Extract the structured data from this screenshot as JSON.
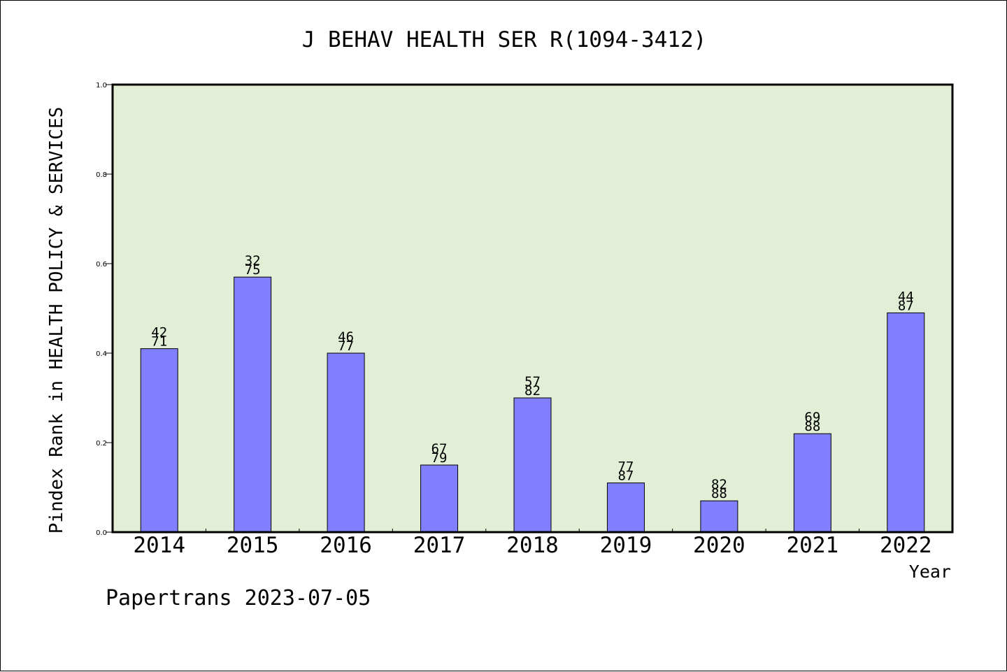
{
  "chart_data": {
    "type": "bar",
    "title": "J BEHAV HEALTH SER R(1094-3412)",
    "xlabel": "Year",
    "ylabel": "Pindex Rank in HEALTH POLICY & SERVICES",
    "ylim": [
      0,
      1.0
    ],
    "yticks": [
      "0.0",
      "0.2",
      "0.4",
      "0.6",
      "0.8",
      "1.0"
    ],
    "grid": false,
    "categories": [
      "2014",
      "2015",
      "2016",
      "2017",
      "2018",
      "2019",
      "2020",
      "2021",
      "2022"
    ],
    "values": [
      0.41,
      0.57,
      0.4,
      0.15,
      0.3,
      0.11,
      0.07,
      0.22,
      0.49
    ],
    "rank_labels": [
      "42",
      "32",
      "46",
      "67",
      "57",
      "77",
      "82",
      "69",
      "44"
    ],
    "total_labels": [
      "71",
      "75",
      "77",
      "79",
      "82",
      "87",
      "88",
      "88",
      "87"
    ],
    "colors": {
      "bar": "#8080ff",
      "plot_background": "#e2efd6",
      "axis": "#000000"
    }
  },
  "footer": "Papertrans 2023-07-05"
}
